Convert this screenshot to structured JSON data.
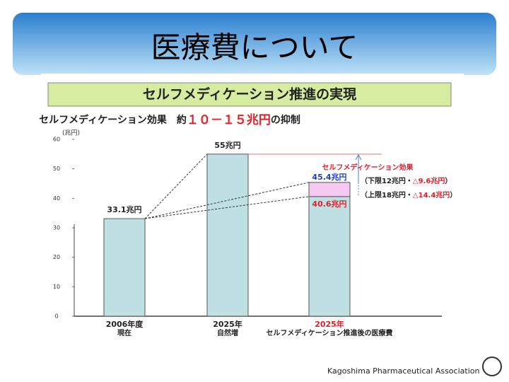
{
  "slide_title": "医療費について",
  "banner": "セルフメディケーション推進の実現",
  "footer": "Kagoshima Pharmaceutical Association",
  "chart_data": {
    "type": "bar",
    "subtitle": [
      "セルフメディケーション効果　約",
      "１０－１５兆円",
      "の抑制"
    ],
    "y_unit": "(兆円)",
    "categories": [
      [
        "2006年度",
        "現在"
      ],
      [
        "2025年",
        "自然増"
      ],
      [
        "2025年",
        "セルフメディケーション推進後の医療費"
      ]
    ],
    "values": [
      33.1,
      55,
      40.6
    ],
    "value_labels": [
      "33.1兆円",
      "55兆円",
      "40.6兆円"
    ],
    "upper": {
      "value": 45.4,
      "label": "45.4兆円"
    },
    "color": "#bfe0e3",
    "effect_color": "#f6c9f0",
    "effect_title": "セルフメディケーション効果",
    "effect_notes": [
      [
        "（下限12兆円・",
        "△9.6兆円",
        "）"
      ],
      [
        "（上限18兆円・",
        "△14.4兆円",
        "）"
      ]
    ],
    "ylim": [
      0,
      60
    ],
    "yticks": [
      0,
      10,
      20,
      30,
      40,
      50,
      60
    ]
  }
}
